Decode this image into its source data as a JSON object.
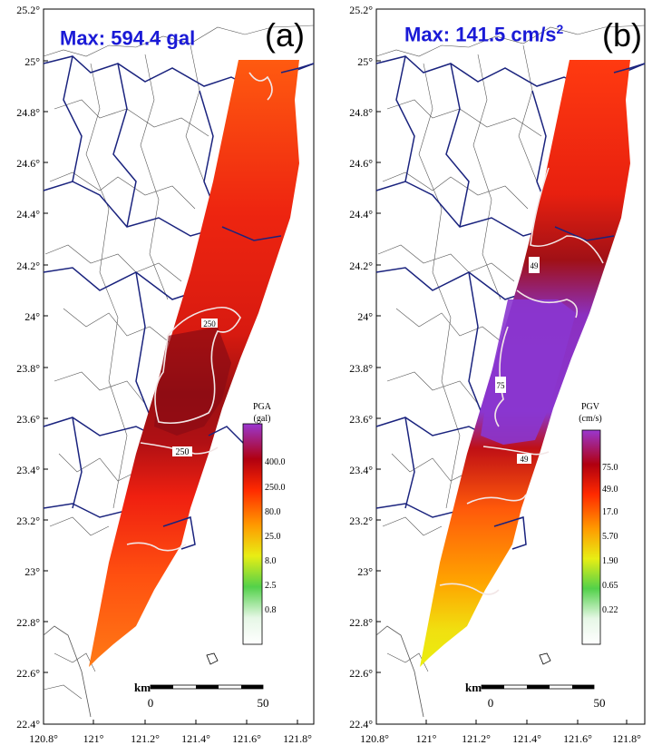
{
  "figure": {
    "lat_labels": [
      "25.2°",
      "25°",
      "24.8°",
      "24.6°",
      "24.4°",
      "24.2°",
      "24°",
      "23.8°",
      "23.6°",
      "23.4°",
      "23.2°",
      "23°",
      "22.8°",
      "22.6°",
      "22.4°"
    ],
    "lon_labels": [
      "120.8°",
      "121°",
      "121.2°",
      "121.4°",
      "121.6°",
      "121.8°"
    ]
  },
  "panels": [
    {
      "id": "a",
      "letter": "(a)",
      "max_prefix": "Max: 594.4 gal",
      "max_sup": "",
      "legend_title": "PGA",
      "legend_unit": "(gal)",
      "legend_values": [
        "400.0",
        "250.0",
        "80.0",
        "25.0",
        "8.0",
        "2.5",
        "0.8"
      ],
      "contour_labels": [
        "250",
        "250"
      ],
      "scale_unit": "km",
      "scale_ticks": [
        "0",
        "50"
      ]
    },
    {
      "id": "b",
      "letter": "(b)",
      "max_prefix": "Max: 141.5 cm/s",
      "max_sup": "2",
      "legend_title": "PGV",
      "legend_unit": "(cm/s)",
      "legend_values": [
        "75.0",
        "49.0",
        "17.0",
        "5.70",
        "1.90",
        "0.65",
        "0.22"
      ],
      "contour_labels": [
        "49",
        "75",
        "49"
      ],
      "scale_unit": "km",
      "scale_ticks": [
        "0",
        "50"
      ]
    }
  ],
  "colors": {
    "legend_scale": [
      "#ffffff",
      "#7dde6c",
      "#22c322",
      "#f2f200",
      "#ff8c00",
      "#ff3a00",
      "#d40000",
      "#8a0010",
      "#9a37d0"
    ],
    "county_border": "#1a237e",
    "town_border": "#555555"
  }
}
